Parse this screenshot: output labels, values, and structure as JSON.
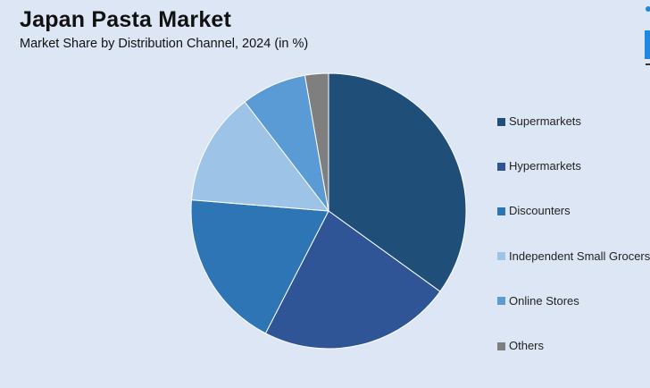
{
  "header": {
    "title": "Japan Pasta Market",
    "subtitle": "Market Share by Distribution Channel, 2024 (in %)"
  },
  "chart_data": {
    "type": "pie",
    "title": "Japan Pasta Market",
    "subtitle": "Market Share by Distribution Channel, 2024 (in %)",
    "legend_position": "right",
    "categories": [
      "Supermarkets",
      "Hypermarkets",
      "Discounters",
      "Independent Small Grocers",
      "Online Stores",
      "Others"
    ],
    "values": [
      35.5,
      23.0,
      19.0,
      13.5,
      7.8,
      2.8
    ],
    "colors": [
      "#1f4e79",
      "#2f5597",
      "#2e75b6",
      "#9dc3e6",
      "#5b9bd5",
      "#7f7f7f"
    ],
    "start_angle_deg": 0,
    "direction": "clockwise"
  },
  "logo": {
    "icon": "brand-logo-icon",
    "color": "#1e88e5"
  }
}
